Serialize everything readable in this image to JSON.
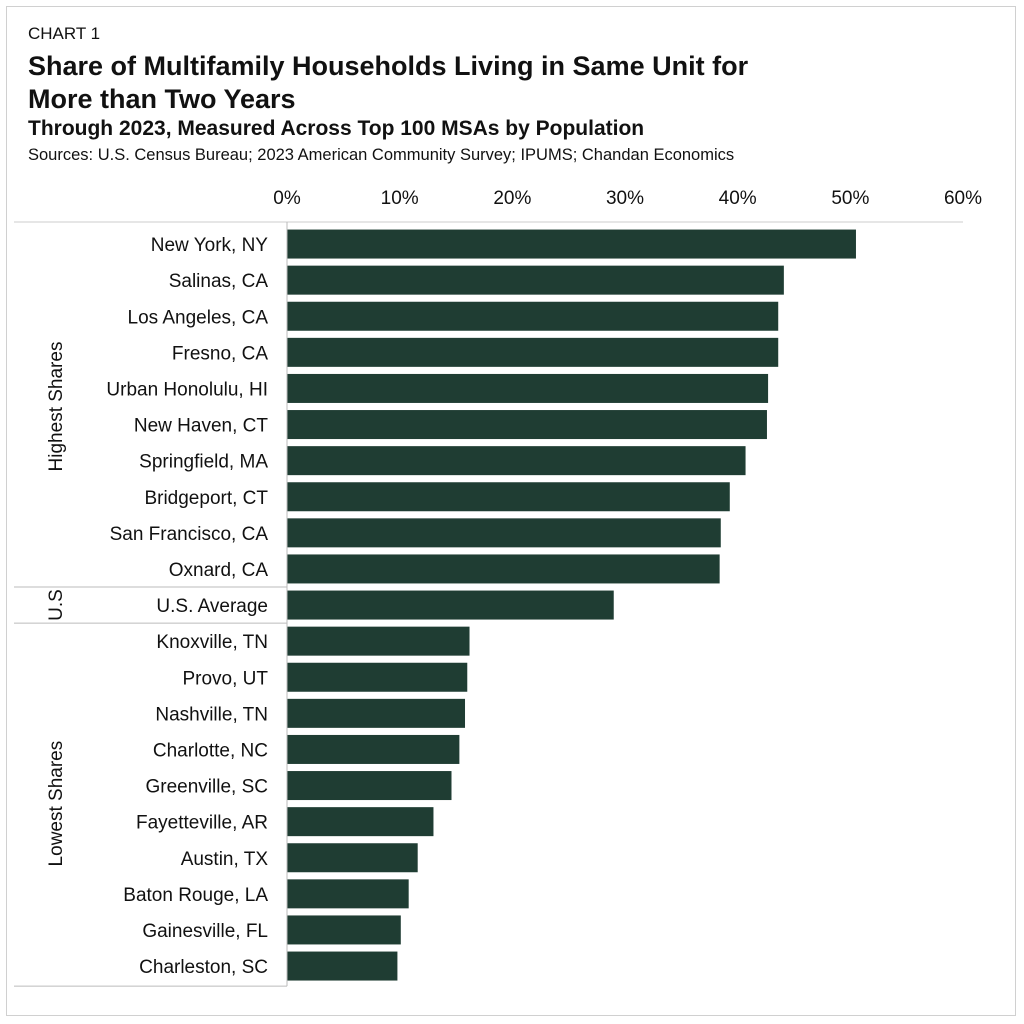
{
  "header": {
    "kicker": "CHART 1",
    "title": "Share of Multifamily Households Living in Same Unit for More than Two Years",
    "subtitle": "Through 2023, Measured Across Top 100 MSAs by Population",
    "sources": "Sources: U.S. Census Bureau; 2023 American Community Survey; IPUMS; Chandan Economics"
  },
  "colors": {
    "bar": "#1f3d33",
    "gridline": "#cccccc",
    "divider": "#bbbbbb"
  },
  "chart_data": {
    "type": "bar",
    "orientation": "horizontal",
    "title": "Share of Multifamily Households Living in Same Unit for More than Two Years",
    "subtitle": "Through 2023, Measured Across Top 100 MSAs by Population",
    "xlim": [
      0,
      60
    ],
    "x_ticks": [
      "0%",
      "10%",
      "20%",
      "30%",
      "40%",
      "50%",
      "60%"
    ],
    "x_axis_position": "top",
    "grid": false,
    "groups": [
      {
        "name": "Highest Shares",
        "categories": [
          "New York, NY",
          "Salinas, CA",
          "Los Angeles, CA",
          "Fresno, CA",
          "Urban Honolulu, HI",
          "New Haven, CT",
          "Springfield, MA",
          "Bridgeport, CT",
          "San Francisco, CA",
          "Oxnard, CA"
        ],
        "values": [
          50.5,
          44.1,
          43.6,
          43.6,
          42.7,
          42.6,
          40.7,
          39.3,
          38.5,
          38.4
        ]
      },
      {
        "name": "U.S",
        "categories": [
          "U.S. Average"
        ],
        "values": [
          29.0
        ]
      },
      {
        "name": "Lowest Shares",
        "categories": [
          "Knoxville, TN",
          "Provo, UT",
          "Nashville, TN",
          "Charlotte, NC",
          "Greenville, SC",
          "Fayetteville, AR",
          "Austin, TX",
          "Baton Rouge, LA",
          "Gainesville, FL",
          "Charleston, SC"
        ],
        "values": [
          16.2,
          16.0,
          15.8,
          15.3,
          14.6,
          13.0,
          11.6,
          10.8,
          10.1,
          9.8
        ]
      }
    ]
  }
}
